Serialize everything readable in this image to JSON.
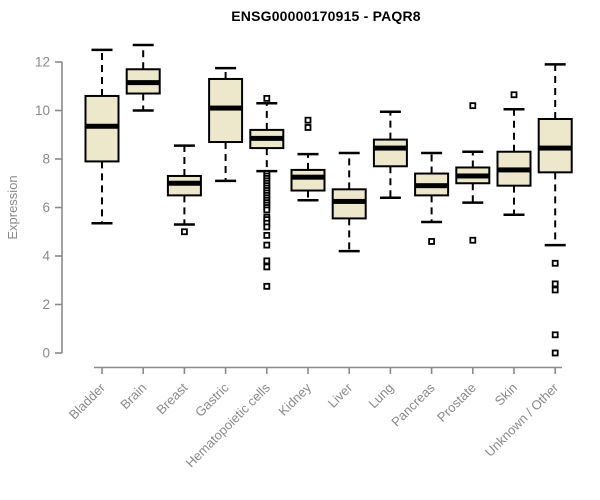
{
  "chart_data": {
    "type": "boxplot",
    "title": "ENSG00000170915 - PAQR8",
    "xlabel": "",
    "ylabel": "Expression",
    "ylim": [
      0,
      12.8
    ],
    "yticks": [
      0,
      2,
      4,
      6,
      8,
      10,
      12
    ],
    "grid": false,
    "legend": "none",
    "colors": {
      "box_fill": "#ede7cc",
      "box_border": "#000000",
      "median": "#000000",
      "whisker": "#000000",
      "axis": "#8a8a8a",
      "tick_label": "#8a8a8a",
      "title": "#000000",
      "background": "#ffffff"
    },
    "categories": [
      "Bladder",
      "Brain",
      "Breast",
      "Gastric",
      "Hematopoietic cells",
      "Kidney",
      "Liver",
      "Lung",
      "Pancreas",
      "Prostate",
      "Skin",
      "Unknown / Other"
    ],
    "series": [
      {
        "name": "Bladder",
        "whisker_low": 5.35,
        "q1": 7.9,
        "median": 9.35,
        "q3": 10.6,
        "whisker_high": 12.5,
        "outliers": []
      },
      {
        "name": "Brain",
        "whisker_low": 10.0,
        "q1": 10.7,
        "median": 11.15,
        "q3": 11.7,
        "whisker_high": 12.7,
        "outliers": []
      },
      {
        "name": "Breast",
        "whisker_low": 5.3,
        "q1": 6.5,
        "median": 7.0,
        "q3": 7.3,
        "whisker_high": 8.55,
        "outliers": [
          5.0
        ]
      },
      {
        "name": "Gastric",
        "whisker_low": 7.1,
        "q1": 8.7,
        "median": 10.1,
        "q3": 11.3,
        "whisker_high": 11.75,
        "outliers": []
      },
      {
        "name": "Hematopoietic cells",
        "whisker_low": 7.5,
        "q1": 8.45,
        "median": 8.85,
        "q3": 9.2,
        "whisker_high": 10.3,
        "outliers": [
          10.5,
          7.4,
          7.3,
          7.2,
          7.1,
          7.0,
          6.9,
          6.8,
          6.7,
          6.6,
          6.5,
          6.4,
          6.3,
          6.2,
          6.1,
          6.0,
          5.9,
          5.6,
          5.5,
          5.35,
          5.2,
          4.85,
          4.45,
          3.8,
          3.55,
          2.75
        ]
      },
      {
        "name": "Kidney",
        "whisker_low": 6.3,
        "q1": 6.7,
        "median": 7.25,
        "q3": 7.55,
        "whisker_high": 8.2,
        "outliers": [
          9.6,
          9.3
        ]
      },
      {
        "name": "Liver",
        "whisker_low": 4.2,
        "q1": 5.55,
        "median": 6.25,
        "q3": 6.75,
        "whisker_high": 8.25,
        "outliers": []
      },
      {
        "name": "Lung",
        "whisker_low": 6.4,
        "q1": 7.7,
        "median": 8.45,
        "q3": 8.8,
        "whisker_high": 9.95,
        "outliers": []
      },
      {
        "name": "Pancreas",
        "whisker_low": 5.4,
        "q1": 6.5,
        "median": 6.9,
        "q3": 7.4,
        "whisker_high": 8.25,
        "outliers": [
          4.6
        ]
      },
      {
        "name": "Prostate",
        "whisker_low": 6.2,
        "q1": 7.0,
        "median": 7.3,
        "q3": 7.65,
        "whisker_high": 8.3,
        "outliers": [
          10.2,
          4.65
        ]
      },
      {
        "name": "Skin",
        "whisker_low": 5.7,
        "q1": 6.9,
        "median": 7.55,
        "q3": 8.3,
        "whisker_high": 10.05,
        "outliers": [
          10.65
        ]
      },
      {
        "name": "Unknown / Other",
        "whisker_low": 4.45,
        "q1": 7.45,
        "median": 8.45,
        "q3": 9.65,
        "whisker_high": 11.9,
        "outliers": [
          3.7,
          2.85,
          2.6,
          0.75,
          0.0
        ]
      }
    ]
  }
}
